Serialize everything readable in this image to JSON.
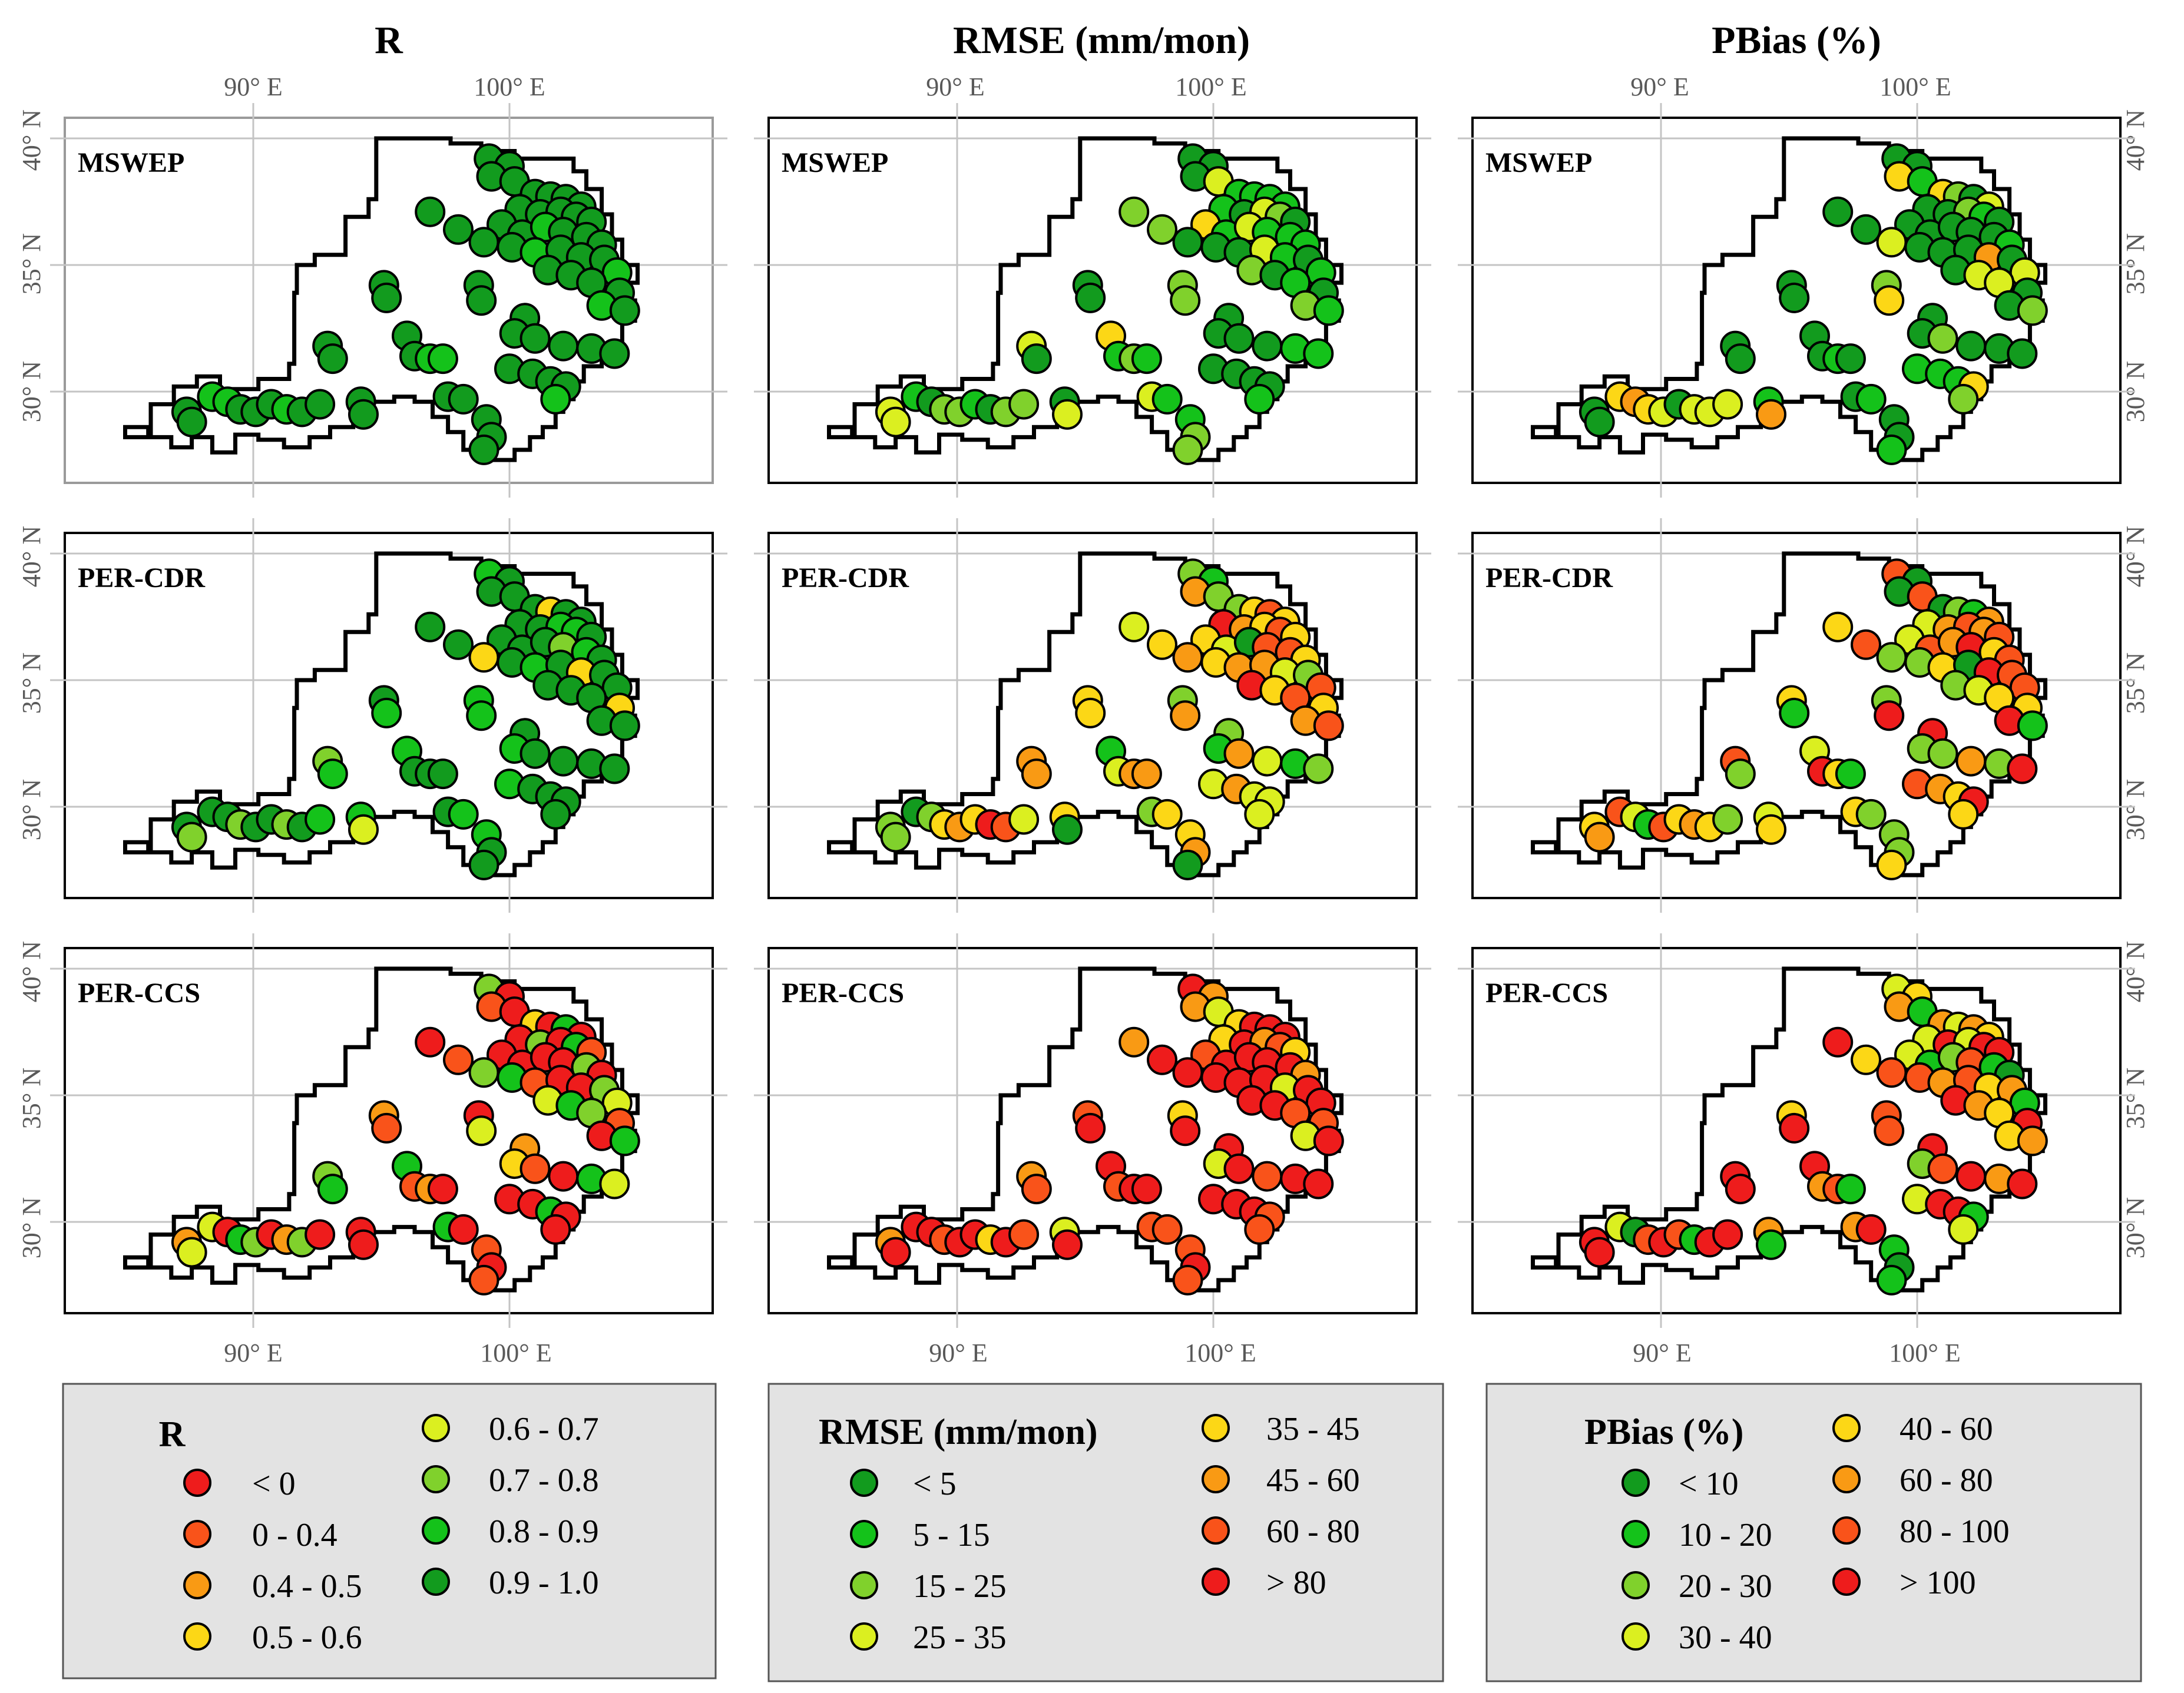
{
  "figure": {
    "column_titles": [
      "R",
      "RMSE (mm/mon)",
      "PBias (%)"
    ],
    "row_labels": [
      "MSWEP",
      "PER-CDR",
      "PER-CCS"
    ],
    "lon_ticks": [
      "90° E",
      "100° E"
    ],
    "lat_ticks": [
      "40° N",
      "35° N",
      "30° N"
    ]
  },
  "colors": {
    "red": "#ee1c1c",
    "orange_red": "#f9531a",
    "orange": "#f99a14",
    "yellow": "#fcd716",
    "yellow_green": "#dbef20",
    "light_green": "#80d12c",
    "green": "#14c21a",
    "dark_green": "#129b1e",
    "legend_bg": "#e3e3e3"
  },
  "legends": [
    {
      "title": "R",
      "entries": [
        {
          "label": "< 0",
          "color": "#ee1c1c"
        },
        {
          "label": "0 - 0.4",
          "color": "#f9531a"
        },
        {
          "label": "0.4 - 0.5",
          "color": "#f99a14"
        },
        {
          "label": "0.5 - 0.6",
          "color": "#fcd716"
        },
        {
          "label": "0.6 - 0.7",
          "color": "#dbef20"
        },
        {
          "label": "0.7 - 0.8",
          "color": "#80d12c"
        },
        {
          "label": "0.8 - 0.9",
          "color": "#14c21a"
        },
        {
          "label": "0.9 - 1.0",
          "color": "#129b1e"
        }
      ]
    },
    {
      "title": "RMSE (mm/mon)",
      "entries": [
        {
          "label": "< 5",
          "color": "#129b1e"
        },
        {
          "label": "5 - 15",
          "color": "#14c21a"
        },
        {
          "label": "15 - 25",
          "color": "#80d12c"
        },
        {
          "label": "25 - 35",
          "color": "#dbef20"
        },
        {
          "label": "35 - 45",
          "color": "#fcd716"
        },
        {
          "label": "45 - 60",
          "color": "#f99a14"
        },
        {
          "label": "60 - 80",
          "color": "#f9531a"
        },
        {
          "label": "> 80",
          "color": "#ee1c1c"
        }
      ]
    },
    {
      "title": "PBias (%)",
      "entries": [
        {
          "label": "< 10",
          "color": "#129b1e"
        },
        {
          "label": "10 - 20",
          "color": "#14c21a"
        },
        {
          "label": "20 - 30",
          "color": "#80d12c"
        },
        {
          "label": "30 - 40",
          "color": "#dbef20"
        },
        {
          "label": "40 - 60",
          "color": "#fcd716"
        },
        {
          "label": "60 - 80",
          "color": "#f99a14"
        },
        {
          "label": "80 - 100",
          "color": "#f9531a"
        },
        {
          "label": "> 100",
          "color": "#ee1c1c"
        }
      ]
    }
  ],
  "stations": [
    [
      99.2,
      39.2
    ],
    [
      100.0,
      38.9
    ],
    [
      99.3,
      38.5
    ],
    [
      100.2,
      38.3
    ],
    [
      101.0,
      37.8
    ],
    [
      101.6,
      37.7
    ],
    [
      102.2,
      37.6
    ],
    [
      102.8,
      37.3
    ],
    [
      100.4,
      37.2
    ],
    [
      101.2,
      37.0
    ],
    [
      102.0,
      37.1
    ],
    [
      102.6,
      36.9
    ],
    [
      103.2,
      36.7
    ],
    [
      96.9,
      37.1
    ],
    [
      98.0,
      36.4
    ],
    [
      99.7,
      36.6
    ],
    [
      100.5,
      36.2
    ],
    [
      101.4,
      36.5
    ],
    [
      102.1,
      36.3
    ],
    [
      103.0,
      36.1
    ],
    [
      103.6,
      35.8
    ],
    [
      99.0,
      35.9
    ],
    [
      100.1,
      35.7
    ],
    [
      101.0,
      35.5
    ],
    [
      102.0,
      35.6
    ],
    [
      102.8,
      35.3
    ],
    [
      103.7,
      35.2
    ],
    [
      104.2,
      34.7
    ],
    [
      101.5,
      34.8
    ],
    [
      102.4,
      34.6
    ],
    [
      103.2,
      34.3
    ],
    [
      104.3,
      33.9
    ],
    [
      95.1,
      34.2
    ],
    [
      95.2,
      33.7
    ],
    [
      98.8,
      34.2
    ],
    [
      98.9,
      33.6
    ],
    [
      103.6,
      33.4
    ],
    [
      104.5,
      33.2
    ],
    [
      100.6,
      32.9
    ],
    [
      100.2,
      32.3
    ],
    [
      101.0,
      32.1
    ],
    [
      102.1,
      31.8
    ],
    [
      103.2,
      31.7
    ],
    [
      104.1,
      31.5
    ],
    [
      92.9,
      31.8
    ],
    [
      93.1,
      31.3
    ],
    [
      96.0,
      32.2
    ],
    [
      96.3,
      31.4
    ],
    [
      96.9,
      31.3
    ],
    [
      97.4,
      31.3
    ],
    [
      100.0,
      30.9
    ],
    [
      100.9,
      30.7
    ],
    [
      101.6,
      30.4
    ],
    [
      102.2,
      30.2
    ],
    [
      101.8,
      29.7
    ],
    [
      97.6,
      29.8
    ],
    [
      98.2,
      29.7
    ],
    [
      94.2,
      29.6
    ],
    [
      94.3,
      29.1
    ],
    [
      87.4,
      29.2
    ],
    [
      87.6,
      28.8
    ],
    [
      88.4,
      29.8
    ],
    [
      89.0,
      29.6
    ],
    [
      89.5,
      29.3
    ],
    [
      90.1,
      29.2
    ],
    [
      90.7,
      29.5
    ],
    [
      91.3,
      29.3
    ],
    [
      91.9,
      29.2
    ],
    [
      92.6,
      29.5
    ],
    [
      99.1,
      28.9
    ],
    [
      99.3,
      28.2
    ],
    [
      99.0,
      27.7
    ]
  ]
}
